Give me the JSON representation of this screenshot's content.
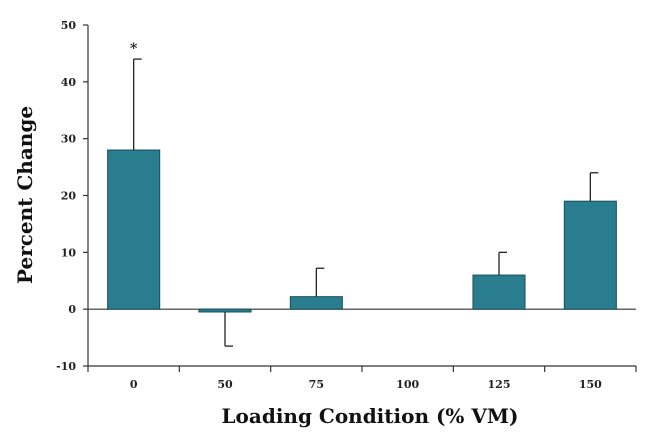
{
  "chart_data": {
    "type": "bar",
    "title": "",
    "xlabel": "Loading Condition (% VM)",
    "ylabel": "Percent Change",
    "categories": [
      "0",
      "50",
      "75",
      "100",
      "125",
      "150"
    ],
    "values": [
      28,
      -0.5,
      2.2,
      0,
      6,
      19
    ],
    "error": [
      16,
      6,
      5,
      0,
      4,
      5
    ],
    "annotations": [
      "*",
      "",
      "",
      "",
      "",
      ""
    ],
    "ylim": [
      -10,
      50
    ],
    "yticks": [
      -10,
      0,
      10,
      20,
      30,
      40,
      50
    ],
    "grid": false,
    "colors": {
      "bar": "#2a7d8f",
      "bar_edge": "#14505c",
      "axis": "#333333"
    }
  }
}
